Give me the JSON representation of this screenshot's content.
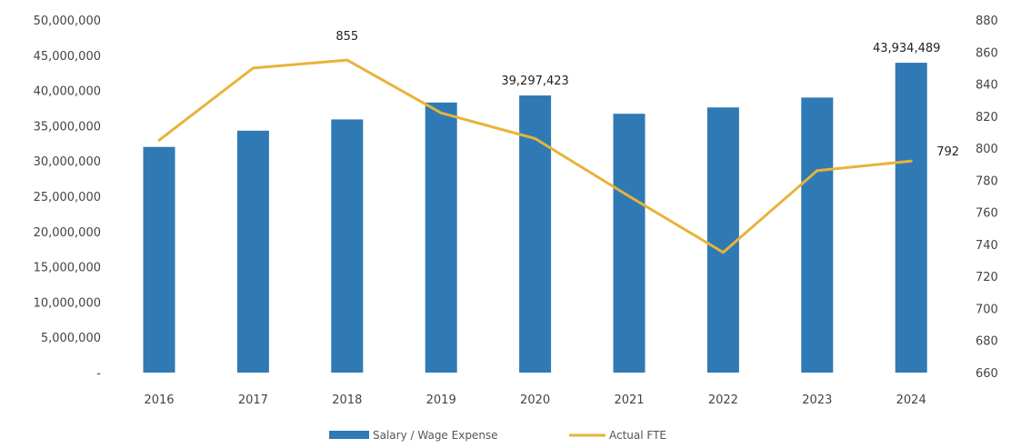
{
  "chart_data": {
    "type": "bar",
    "categories": [
      "2016",
      "2017",
      "2018",
      "2019",
      "2020",
      "2021",
      "2022",
      "2023",
      "2024"
    ],
    "series": [
      {
        "name": "Salary / Wage Expense",
        "type": "bar",
        "axis": "left",
        "color": "#2f7ab5",
        "values": [
          32000000,
          34300000,
          35900000,
          38300000,
          39297423,
          36700000,
          37600000,
          39000000,
          43934489
        ]
      },
      {
        "name": "Actual FTE",
        "type": "line",
        "axis": "right",
        "color": "#e8b33a",
        "values": [
          805,
          850,
          855,
          822,
          806,
          770,
          735,
          786,
          792
        ]
      }
    ],
    "y_left": {
      "min": 0,
      "max": 50000000,
      "ticks": [
        "-",
        "5,000,000",
        "10,000,000",
        "15,000,000",
        "20,000,000",
        "25,000,000",
        "30,000,000",
        "35,000,000",
        "40,000,000",
        "45,000,000",
        "50,000,000"
      ]
    },
    "y_right": {
      "min": 660,
      "max": 880,
      "ticks": [
        "660",
        "680",
        "700",
        "720",
        "740",
        "760",
        "780",
        "800",
        "820",
        "840",
        "860",
        "880"
      ]
    },
    "data_labels": [
      {
        "series": 1,
        "index": 2,
        "text": "855"
      },
      {
        "series": 0,
        "index": 4,
        "text": "39,297,423"
      },
      {
        "series": 0,
        "index": 8,
        "text": "43,934,489"
      },
      {
        "series": 1,
        "index": 8,
        "text": "792"
      }
    ],
    "legend": {
      "placement": "bottom"
    },
    "grid": false
  }
}
